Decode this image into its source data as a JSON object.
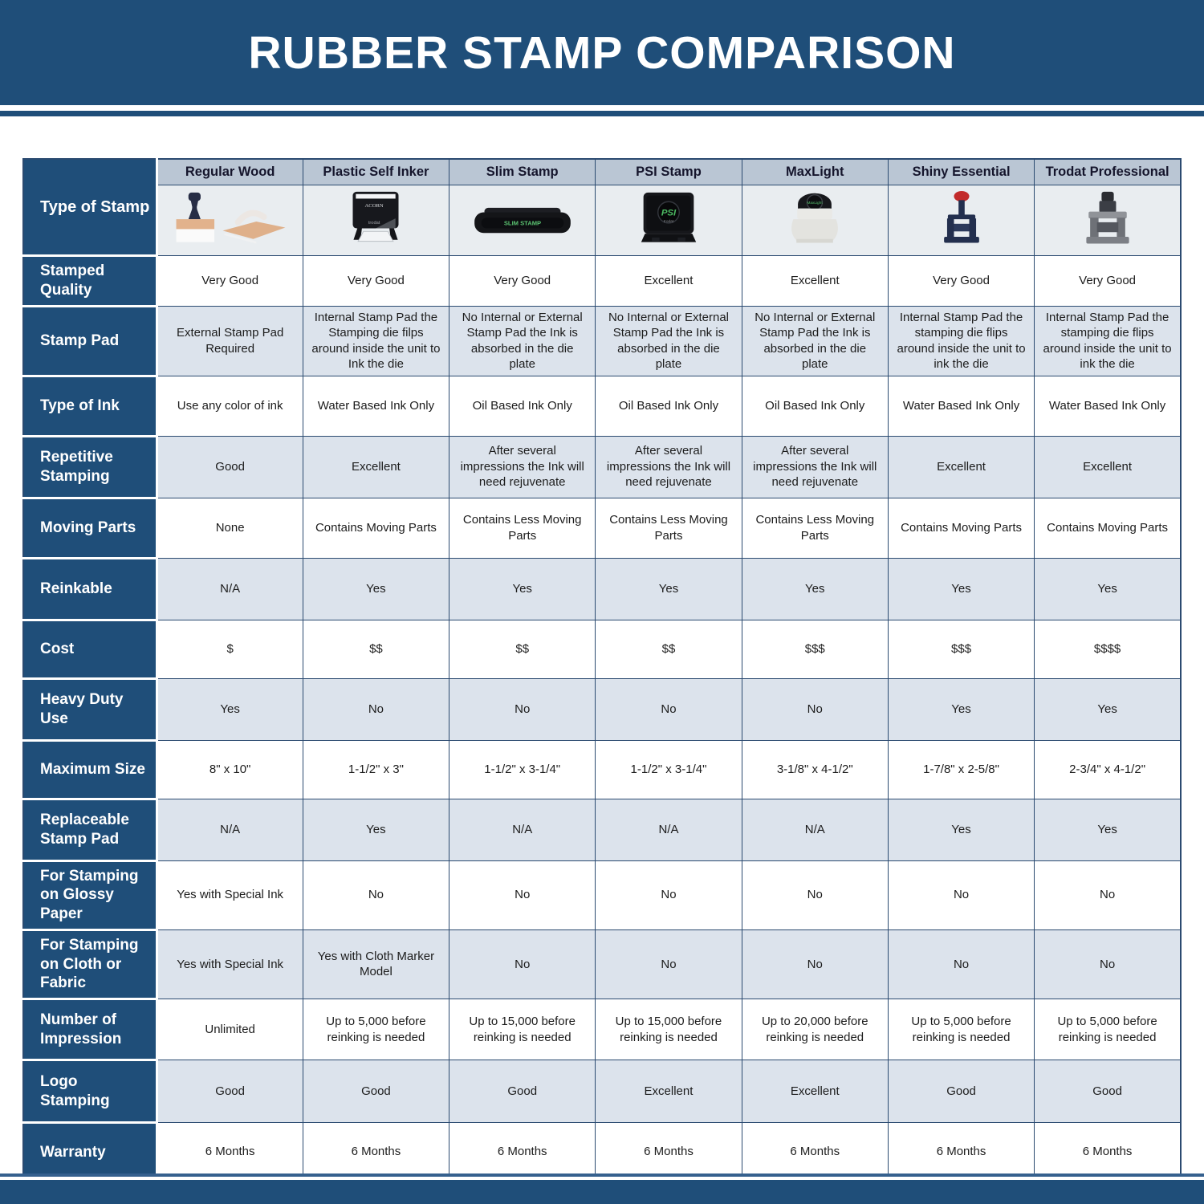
{
  "page": {
    "title": "RUBBER STAMP COMPARISON"
  },
  "colors": {
    "brand_blue": "#1F4E79",
    "header_strip": "#BAC6D4",
    "alt_row": "#DCE3EC",
    "image_row_bg": "#E9EDF0",
    "gridline": "#2B4A70"
  },
  "table": {
    "corner_label": "Type of Stamp",
    "columns": [
      "Regular Wood",
      "Plastic Self Inker",
      "Slim Stamp",
      "PSI Stamp",
      "MaxLight",
      "Shiny Essential",
      "Trodat Professional"
    ],
    "stamp_icons": [
      "regular-wood-stamp",
      "plastic-self-inker-stamp",
      "slim-stamp",
      "psi-stamp",
      "maxlight-stamp",
      "shiny-essential-stamp",
      "trodat-professional-stamp"
    ],
    "rows": [
      {
        "label": "Stamped Quality",
        "values": [
          "Very Good",
          "Very Good",
          "Very Good",
          "Excellent",
          "Excellent",
          "Very Good",
          "Very Good"
        ]
      },
      {
        "label": "Stamp Pad",
        "values": [
          "External Stamp Pad Required",
          "Internal Stamp Pad the Stamping die filps around inside the unit to Ink the die",
          "No Internal or External Stamp Pad the Ink is absorbed in the die plate",
          "No Internal or External Stamp Pad the Ink is absorbed in the die plate",
          "No Internal or External Stamp Pad the Ink is absorbed in the die plate",
          "Internal Stamp Pad the stamping die flips around inside the unit to ink the die",
          "Internal Stamp Pad the stamping die flips around inside the unit to ink the die"
        ]
      },
      {
        "label": "Type of Ink",
        "values": [
          "Use any color of ink",
          "Water Based Ink Only",
          "Oil Based Ink Only",
          "Oil Based Ink Only",
          "Oil Based Ink Only",
          "Water Based Ink Only",
          "Water Based Ink Only"
        ]
      },
      {
        "label": "Repetitive Stamping",
        "values": [
          "Good",
          "Excellent",
          "After several impressions the Ink will need rejuvenate",
          "After several impressions the Ink will need rejuvenate",
          "After several impressions the Ink will need rejuvenate",
          "Excellent",
          "Excellent"
        ]
      },
      {
        "label": "Moving Parts",
        "values": [
          "None",
          "Contains Moving Parts",
          "Contains Less Moving Parts",
          "Contains Less Moving Parts",
          "Contains Less Moving Parts",
          "Contains Moving Parts",
          "Contains Moving Parts"
        ]
      },
      {
        "label": "Reinkable",
        "values": [
          "N/A",
          "Yes",
          "Yes",
          "Yes",
          "Yes",
          "Yes",
          "Yes"
        ]
      },
      {
        "label": "Cost",
        "values": [
          "$",
          "$$",
          "$$",
          "$$",
          "$$$",
          "$$$",
          "$$$$"
        ]
      },
      {
        "label": "Heavy Duty Use",
        "values": [
          "Yes",
          "No",
          "No",
          "No",
          "No",
          "Yes",
          "Yes"
        ]
      },
      {
        "label": "Maximum Size",
        "values": [
          "8\" x 10\"",
          "1-1/2\" x 3\"",
          "1-1/2\" x 3-1/4\"",
          "1-1/2\" x 3-1/4\"",
          "3-1/8\" x 4-1/2\"",
          "1-7/8\" x 2-5/8\"",
          "2-3/4\" x 4-1/2\""
        ]
      },
      {
        "label": "Replaceable Stamp Pad",
        "values": [
          "N/A",
          "Yes",
          "N/A",
          "N/A",
          "N/A",
          "Yes",
          "Yes"
        ]
      },
      {
        "label": "For Stamping on Glossy Paper",
        "values": [
          "Yes with Special Ink",
          "No",
          "No",
          "No",
          "No",
          "No",
          "No"
        ]
      },
      {
        "label": "For Stamping on Cloth or Fabric",
        "values": [
          "Yes with Special Ink",
          "Yes with Cloth Marker Model",
          "No",
          "No",
          "No",
          "No",
          "No"
        ]
      },
      {
        "label": "Number of Impression",
        "values": [
          "Unlimited",
          "Up to 5,000 before reinking is needed",
          "Up to 15,000 before reinking is needed",
          "Up to 15,000 before reinking is needed",
          "Up to 20,000 before reinking is needed",
          "Up to 5,000 before reinking is needed",
          "Up to 5,000 before reinking is needed"
        ]
      },
      {
        "label": "Logo Stamping",
        "values": [
          "Good",
          "Good",
          "Good",
          "Excellent",
          "Excellent",
          "Good",
          "Good"
        ]
      },
      {
        "label": "Warranty",
        "values": [
          "6 Months",
          "6 Months",
          "6 Months",
          "6 Months",
          "6 Months",
          "6 Months",
          "6 Months"
        ]
      }
    ]
  }
}
